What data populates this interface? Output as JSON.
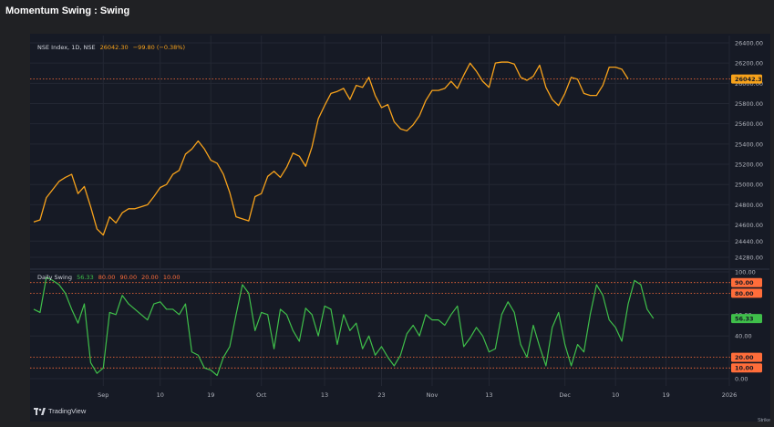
{
  "page": {
    "title": "Momentum Swing : Swing"
  },
  "colors": {
    "price_line": "#f7a21b",
    "osc_line": "#3fbf4a",
    "level_line": "#ff6d3a",
    "panel_bg": "#161a25",
    "grid": "#232733",
    "axis_text": "#b2b5be"
  },
  "legend": {
    "symbol": "NSE Index, 1D, NSE",
    "last": "26042.30",
    "change": "−99.80 (−0.38%)",
    "osc_name": "Daily Swing",
    "osc_value": "56.33",
    "osc_levels": [
      "80.00",
      "90.00",
      "20.00",
      "10.00"
    ]
  },
  "branding": {
    "logo": "TradingView",
    "credit": "Strike"
  },
  "chart_data": [
    {
      "type": "line",
      "series": [
        {
          "name": "NSE Index, 1D, NSE",
          "values": [
            24630,
            24650,
            24870,
            24950,
            25030,
            25070,
            25100,
            24910,
            24980,
            24780,
            24560,
            24500,
            24680,
            24620,
            24720,
            24760,
            24760,
            24780,
            24800,
            24880,
            24970,
            25000,
            25100,
            25140,
            25300,
            25350,
            25430,
            25350,
            25240,
            25210,
            25100,
            24920,
            24680,
            24660,
            24640,
            24880,
            24910,
            25080,
            25130,
            25070,
            25170,
            25310,
            25280,
            25180,
            25370,
            25650,
            25780,
            25900,
            25920,
            25950,
            25840,
            25980,
            25960,
            26060,
            25880,
            25760,
            25790,
            25620,
            25550,
            25530,
            25590,
            25680,
            25830,
            25930,
            25930,
            25950,
            26020,
            25950,
            26080,
            26200,
            26120,
            26020,
            25960,
            26200,
            26210,
            26210,
            26190,
            26060,
            26030,
            26070,
            26180,
            25960,
            25840,
            25780,
            25900,
            26060,
            26040,
            25900,
            25880,
            25880,
            25980,
            26160,
            26160,
            26140,
            26042.3
          ]
        }
      ],
      "x_tick_labels": [
        "Sep",
        "10",
        "19",
        "Oct",
        "13",
        "23",
        "Nov",
        "13",
        "Dec",
        "10",
        "19",
        "2026"
      ],
      "x_tick_index": [
        11,
        20,
        28,
        36,
        46,
        55,
        63,
        72,
        84,
        92,
        100,
        110
      ],
      "x_len": 110,
      "ylim": [
        24280,
        26400
      ],
      "yticks": [
        "26400.00",
        "26200.00",
        "26000.00",
        "25800.00",
        "25600.00",
        "25400.00",
        "25200.00",
        "25000.00",
        "24800.00",
        "24600.00",
        "24440.00",
        "24280.00"
      ],
      "ytick_values": [
        26400,
        26200,
        26000,
        25800,
        25600,
        25400,
        25200,
        25000,
        24800,
        24600,
        24440,
        24280
      ],
      "last_value_label": "26042.30",
      "last_value": 26042.3
    },
    {
      "type": "line",
      "series": [
        {
          "name": "Daily Swing",
          "values": [
            65,
            62,
            95,
            92,
            88,
            80,
            65,
            52,
            70,
            15,
            5,
            10,
            62,
            60,
            78,
            70,
            65,
            60,
            55,
            70,
            72,
            65,
            65,
            60,
            70,
            25,
            22,
            10,
            8,
            3,
            20,
            30,
            60,
            88,
            80,
            45,
            62,
            60,
            28,
            65,
            60,
            45,
            35,
            66,
            60,
            40,
            68,
            65,
            32,
            60,
            45,
            52,
            28,
            40,
            22,
            30,
            20,
            12,
            22,
            42,
            50,
            40,
            60,
            55,
            55,
            50,
            60,
            68,
            30,
            38,
            48,
            40,
            25,
            28,
            60,
            72,
            62,
            32,
            20,
            50,
            30,
            12,
            48,
            62,
            32,
            12,
            32,
            25,
            60,
            88,
            78,
            55,
            48,
            35,
            70,
            92,
            88,
            65,
            56.33
          ]
        }
      ],
      "x_tick_labels": [
        "Sep",
        "10",
        "19",
        "Oct",
        "13",
        "23",
        "Nov",
        "13",
        "Dec",
        "10",
        "19",
        "2026"
      ],
      "ylim": [
        0,
        100
      ],
      "yticks": [
        "100.00",
        "60.00",
        "40.00",
        "0.00"
      ],
      "ytick_values": [
        100,
        60,
        40,
        0
      ],
      "levels": [
        90,
        80,
        20,
        10
      ],
      "level_labels": [
        "90.00",
        "80.00",
        "20.00",
        "10.00"
      ],
      "last_value_label": "56.33",
      "last_value": 56.33
    }
  ]
}
